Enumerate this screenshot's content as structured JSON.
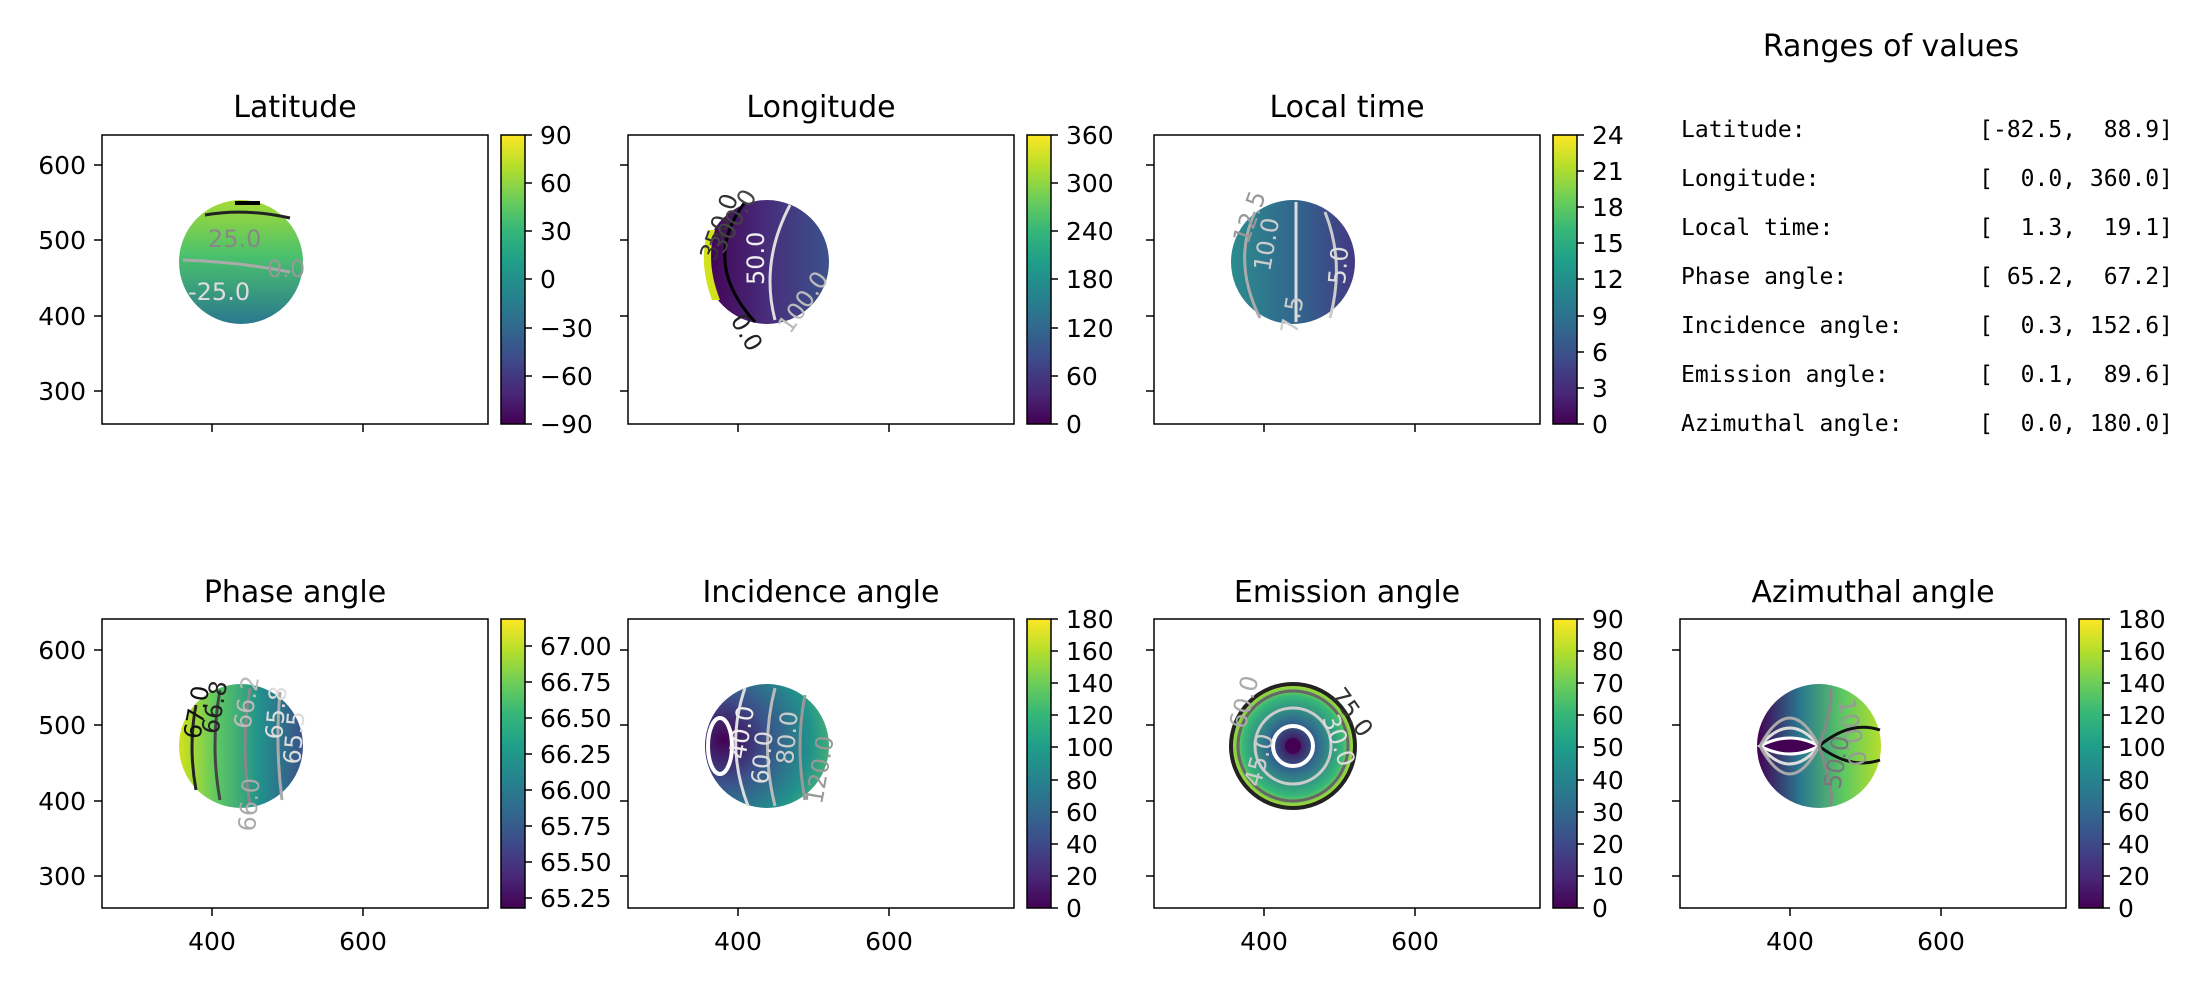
{
  "chart_data": [
    {
      "type": "heatmap",
      "title": "Latitude",
      "colorbar": {
        "ticks": [
          "90",
          "60",
          "30",
          "0",
          "−30",
          "−60",
          "−90"
        ],
        "range": [
          -90,
          90
        ]
      },
      "contour_labels": [
        "25.0",
        "0.0",
        "-25.0"
      ],
      "yticks": [
        "600",
        "500",
        "400",
        "300"
      ],
      "xticks": []
    },
    {
      "type": "heatmap",
      "title": "Longitude",
      "colorbar": {
        "ticks": [
          "360",
          "300",
          "240",
          "180",
          "120",
          "60",
          "0"
        ],
        "range": [
          0,
          360
        ]
      },
      "contour_labels": [
        "50.0",
        "100.0",
        "350.0",
        "300.0",
        "0.0"
      ],
      "yticks": [],
      "xticks": []
    },
    {
      "type": "heatmap",
      "title": "Local time",
      "colorbar": {
        "ticks": [
          "24",
          "21",
          "18",
          "15",
          "12",
          "9",
          "6",
          "3",
          "0"
        ],
        "range": [
          0,
          24
        ]
      },
      "contour_labels": [
        "12.5",
        "10.0",
        "5.0",
        "7.5"
      ],
      "yticks": [],
      "xticks": []
    },
    {
      "type": "heatmap",
      "title": "Phase angle",
      "colorbar": {
        "ticks": [
          "67.00",
          "66.75",
          "66.50",
          "66.25",
          "66.00",
          "65.75",
          "65.50",
          "65.25"
        ],
        "range": [
          65.2,
          67.2
        ]
      },
      "contour_labels": [
        "67.0",
        "66.8",
        "66.2",
        "65.8",
        "65.5",
        "66.0"
      ],
      "yticks": [
        "600",
        "500",
        "400",
        "300"
      ],
      "xticks": [
        "400",
        "600"
      ]
    },
    {
      "type": "heatmap",
      "title": "Incidence angle",
      "colorbar": {
        "ticks": [
          "180",
          "160",
          "140",
          "120",
          "100",
          "80",
          "60",
          "40",
          "20",
          "0"
        ],
        "range": [
          0,
          180
        ]
      },
      "contour_labels": [
        "40.0",
        "60.0",
        "80.0",
        "120.0"
      ],
      "yticks": [],
      "xticks": [
        "400",
        "600"
      ]
    },
    {
      "type": "heatmap",
      "title": "Emission angle",
      "colorbar": {
        "ticks": [
          "90",
          "80",
          "70",
          "60",
          "50",
          "40",
          "30",
          "20",
          "10",
          "0"
        ],
        "range": [
          0,
          90
        ]
      },
      "contour_labels": [
        "75.0",
        "30.0",
        "60.0",
        "45.0"
      ],
      "yticks": [],
      "xticks": [
        "400",
        "600"
      ]
    },
    {
      "type": "heatmap",
      "title": "Azimuthal angle",
      "colorbar": {
        "ticks": [
          "180",
          "160",
          "140",
          "120",
          "100",
          "80",
          "60",
          "40",
          "20",
          "0"
        ],
        "range": [
          0,
          180
        ]
      },
      "contour_labels": [
        "100.0",
        "50.0"
      ],
      "yticks": [],
      "xticks": [
        "400",
        "600"
      ]
    }
  ],
  "ranges_panel": {
    "title": "Ranges of values",
    "rows": [
      {
        "label": "Latitude:",
        "value": "[-82.5,  88.9]"
      },
      {
        "label": "Longitude:",
        "value": "[  0.0, 360.0]"
      },
      {
        "label": "Local time:",
        "value": "[  1.3,  19.1]"
      },
      {
        "label": "Phase angle:",
        "value": "[ 65.2,  67.2]"
      },
      {
        "label": "Incidence angle:",
        "value": "[  0.3, 152.6]"
      },
      {
        "label": "Emission angle:",
        "value": "[  0.1,  89.6]"
      },
      {
        "label": "Azimuthal angle:",
        "value": "[  0.0, 180.0]"
      }
    ]
  },
  "colors": {
    "viridis": [
      "#440154",
      "#482878",
      "#3e4989",
      "#31688e",
      "#26828e",
      "#1f9e89",
      "#35b779",
      "#6ece58",
      "#b5de2b",
      "#fde725"
    ]
  }
}
